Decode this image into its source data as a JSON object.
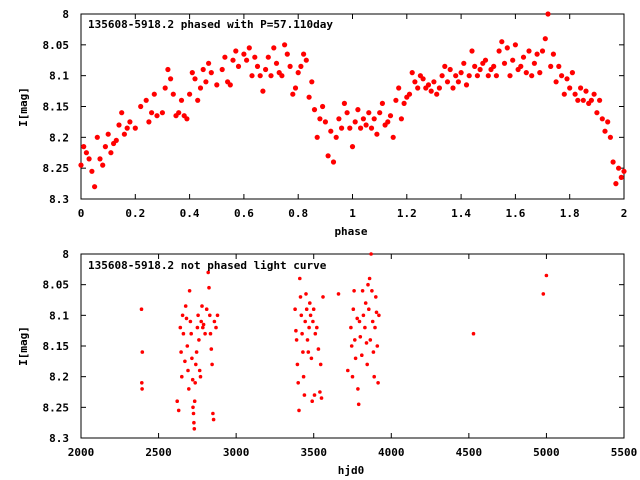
{
  "accent_color": "#ff0000",
  "chart_data": [
    {
      "type": "scatter",
      "title": "135608-5918.2 phased with P=57.110day",
      "xlabel": "phase",
      "ylabel": "I[mag]",
      "xlim": [
        0,
        2
      ],
      "ylim": [
        8.3,
        8.0
      ],
      "y_inverted": true,
      "x_ticks": [
        "0",
        "0.2",
        "0.4",
        "0.6",
        "0.8",
        "1",
        "1.2",
        "1.4",
        "1.6",
        "1.8",
        "2"
      ],
      "y_ticks": [
        "8",
        "8.05",
        "8.1",
        "8.15",
        "8.2",
        "8.25",
        "8.3"
      ],
      "grid": false,
      "legend": "top-left",
      "point_color": "#ff0000",
      "points": [
        [
          0.0,
          8.245
        ],
        [
          0.01,
          8.215
        ],
        [
          0.02,
          8.225
        ],
        [
          0.03,
          8.235
        ],
        [
          0.04,
          8.255
        ],
        [
          0.05,
          8.28
        ],
        [
          0.06,
          8.2
        ],
        [
          0.07,
          8.235
        ],
        [
          0.08,
          8.245
        ],
        [
          0.09,
          8.215
        ],
        [
          0.1,
          8.195
        ],
        [
          0.11,
          8.225
        ],
        [
          0.12,
          8.21
        ],
        [
          0.13,
          8.205
        ],
        [
          0.14,
          8.18
        ],
        [
          0.15,
          8.16
        ],
        [
          0.16,
          8.195
        ],
        [
          0.17,
          8.185
        ],
        [
          0.18,
          8.175
        ],
        [
          0.2,
          8.185
        ],
        [
          0.22,
          8.15
        ],
        [
          0.24,
          8.14
        ],
        [
          0.25,
          8.175
        ],
        [
          0.26,
          8.16
        ],
        [
          0.27,
          8.13
        ],
        [
          0.28,
          8.165
        ],
        [
          0.3,
          8.16
        ],
        [
          0.31,
          8.12
        ],
        [
          0.32,
          8.09
        ],
        [
          0.33,
          8.105
        ],
        [
          0.34,
          8.13
        ],
        [
          0.35,
          8.165
        ],
        [
          0.36,
          8.16
        ],
        [
          0.37,
          8.14
        ],
        [
          0.38,
          8.165
        ],
        [
          0.39,
          8.17
        ],
        [
          0.4,
          8.13
        ],
        [
          0.41,
          8.095
        ],
        [
          0.42,
          8.105
        ],
        [
          0.43,
          8.14
        ],
        [
          0.44,
          8.12
        ],
        [
          0.45,
          8.09
        ],
        [
          0.46,
          8.11
        ],
        [
          0.47,
          8.08
        ],
        [
          0.48,
          8.095
        ],
        [
          0.5,
          8.115
        ],
        [
          0.52,
          8.09
        ],
        [
          0.53,
          8.07
        ],
        [
          0.54,
          8.11
        ],
        [
          0.55,
          8.115
        ],
        [
          0.56,
          8.075
        ],
        [
          0.57,
          8.06
        ],
        [
          0.58,
          8.085
        ],
        [
          0.6,
          8.065
        ],
        [
          0.61,
          8.075
        ],
        [
          0.62,
          8.055
        ],
        [
          0.63,
          8.1
        ],
        [
          0.64,
          8.07
        ],
        [
          0.65,
          8.085
        ],
        [
          0.66,
          8.1
        ],
        [
          0.67,
          8.125
        ],
        [
          0.68,
          8.09
        ],
        [
          0.69,
          8.07
        ],
        [
          0.7,
          8.1
        ],
        [
          0.71,
          8.055
        ],
        [
          0.72,
          8.08
        ],
        [
          0.73,
          8.095
        ],
        [
          0.74,
          8.1
        ],
        [
          0.75,
          8.05
        ],
        [
          0.76,
          8.065
        ],
        [
          0.77,
          8.085
        ],
        [
          0.78,
          8.13
        ],
        [
          0.79,
          8.12
        ],
        [
          0.8,
          8.095
        ],
        [
          0.81,
          8.085
        ],
        [
          0.82,
          8.065
        ],
        [
          0.83,
          8.075
        ],
        [
          0.84,
          8.135
        ],
        [
          0.85,
          8.11
        ],
        [
          0.86,
          8.155
        ],
        [
          0.87,
          8.2
        ],
        [
          0.88,
          8.17
        ],
        [
          0.89,
          8.15
        ],
        [
          0.9,
          8.175
        ],
        [
          0.91,
          8.23
        ],
        [
          0.92,
          8.19
        ],
        [
          0.93,
          8.24
        ],
        [
          0.94,
          8.2
        ],
        [
          0.95,
          8.17
        ],
        [
          0.96,
          8.185
        ],
        [
          0.97,
          8.145
        ],
        [
          0.98,
          8.16
        ],
        [
          0.99,
          8.185
        ],
        [
          1.0,
          8.215
        ],
        [
          1.01,
          8.175
        ],
        [
          1.02,
          8.155
        ],
        [
          1.03,
          8.185
        ],
        [
          1.04,
          8.17
        ],
        [
          1.05,
          8.18
        ],
        [
          1.06,
          8.16
        ],
        [
          1.07,
          8.185
        ],
        [
          1.08,
          8.17
        ],
        [
          1.09,
          8.195
        ],
        [
          1.1,
          8.16
        ],
        [
          1.11,
          8.145
        ],
        [
          1.12,
          8.18
        ],
        [
          1.13,
          8.175
        ],
        [
          1.14,
          8.165
        ],
        [
          1.15,
          8.2
        ],
        [
          1.16,
          8.14
        ],
        [
          1.17,
          8.12
        ],
        [
          1.18,
          8.17
        ],
        [
          1.19,
          8.145
        ],
        [
          1.2,
          8.135
        ],
        [
          1.21,
          8.13
        ],
        [
          1.22,
          8.095
        ],
        [
          1.23,
          8.11
        ],
        [
          1.24,
          8.12
        ],
        [
          1.25,
          8.1
        ],
        [
          1.26,
          8.105
        ],
        [
          1.27,
          8.12
        ],
        [
          1.28,
          8.115
        ],
        [
          1.29,
          8.125
        ],
        [
          1.3,
          8.11
        ],
        [
          1.31,
          8.13
        ],
        [
          1.32,
          8.12
        ],
        [
          1.33,
          8.1
        ],
        [
          1.34,
          8.085
        ],
        [
          1.35,
          8.11
        ],
        [
          1.36,
          8.09
        ],
        [
          1.37,
          8.12
        ],
        [
          1.38,
          8.1
        ],
        [
          1.39,
          8.11
        ],
        [
          1.4,
          8.095
        ],
        [
          1.41,
          8.08
        ],
        [
          1.42,
          8.115
        ],
        [
          1.43,
          8.1
        ],
        [
          1.44,
          8.06
        ],
        [
          1.45,
          8.085
        ],
        [
          1.46,
          8.1
        ],
        [
          1.47,
          8.09
        ],
        [
          1.48,
          8.08
        ],
        [
          1.49,
          8.075
        ],
        [
          1.5,
          8.1
        ],
        [
          1.51,
          8.09
        ],
        [
          1.52,
          8.085
        ],
        [
          1.53,
          8.1
        ],
        [
          1.54,
          8.06
        ],
        [
          1.55,
          8.045
        ],
        [
          1.56,
          8.08
        ],
        [
          1.57,
          8.055
        ],
        [
          1.58,
          8.1
        ],
        [
          1.59,
          8.075
        ],
        [
          1.6,
          8.05
        ],
        [
          1.61,
          8.09
        ],
        [
          1.62,
          8.085
        ],
        [
          1.63,
          8.07
        ],
        [
          1.64,
          8.095
        ],
        [
          1.65,
          8.06
        ],
        [
          1.66,
          8.1
        ],
        [
          1.67,
          8.08
        ],
        [
          1.68,
          8.065
        ],
        [
          1.69,
          8.095
        ],
        [
          1.7,
          8.06
        ],
        [
          1.71,
          8.04
        ],
        [
          1.72,
          8.0
        ],
        [
          1.73,
          8.085
        ],
        [
          1.74,
          8.065
        ],
        [
          1.75,
          8.11
        ],
        [
          1.76,
          8.085
        ],
        [
          1.77,
          8.1
        ],
        [
          1.78,
          8.13
        ],
        [
          1.79,
          8.105
        ],
        [
          1.8,
          8.12
        ],
        [
          1.81,
          8.095
        ],
        [
          1.82,
          8.13
        ],
        [
          1.83,
          8.14
        ],
        [
          1.84,
          8.12
        ],
        [
          1.85,
          8.14
        ],
        [
          1.86,
          8.125
        ],
        [
          1.87,
          8.145
        ],
        [
          1.88,
          8.14
        ],
        [
          1.89,
          8.13
        ],
        [
          1.9,
          8.16
        ],
        [
          1.91,
          8.14
        ],
        [
          1.92,
          8.17
        ],
        [
          1.93,
          8.19
        ],
        [
          1.94,
          8.175
        ],
        [
          1.95,
          8.2
        ],
        [
          1.96,
          8.24
        ],
        [
          1.97,
          8.275
        ],
        [
          1.98,
          8.25
        ],
        [
          1.99,
          8.265
        ],
        [
          2.0,
          8.255
        ]
      ]
    },
    {
      "type": "scatter",
      "title": "135608-5918.2 not phased light curve",
      "xlabel": "hjd0",
      "ylabel": "I[mag]",
      "xlim": [
        2000,
        5500
      ],
      "ylim": [
        8.3,
        8.0
      ],
      "y_inverted": true,
      "x_ticks": [
        "2000",
        "2500",
        "3000",
        "3500",
        "4000",
        "4500",
        "5000",
        "5500"
      ],
      "y_ticks": [
        "8",
        "8.05",
        "8.1",
        "8.15",
        "8.2",
        "8.25",
        "8.3"
      ],
      "grid": false,
      "legend": "top-left",
      "point_color": "#ff0000",
      "points": [
        [
          2390,
          8.09
        ],
        [
          2395,
          8.16
        ],
        [
          2392,
          8.21
        ],
        [
          2394,
          8.22
        ],
        [
          2620,
          8.24
        ],
        [
          2630,
          8.255
        ],
        [
          2640,
          8.12
        ],
        [
          2645,
          8.16
        ],
        [
          2650,
          8.2
        ],
        [
          2655,
          8.1
        ],
        [
          2660,
          8.13
        ],
        [
          2670,
          8.175
        ],
        [
          2675,
          8.085
        ],
        [
          2680,
          8.105
        ],
        [
          2685,
          8.15
        ],
        [
          2690,
          8.19
        ],
        [
          2695,
          8.22
        ],
        [
          2700,
          8.06
        ],
        [
          2705,
          8.11
        ],
        [
          2710,
          8.13
        ],
        [
          2715,
          8.17
        ],
        [
          2720,
          8.205
        ],
        [
          2722,
          8.25
        ],
        [
          2725,
          8.26
        ],
        [
          2728,
          8.275
        ],
        [
          2730,
          8.285
        ],
        [
          2733,
          8.24
        ],
        [
          2736,
          8.21
        ],
        [
          2740,
          8.18
        ],
        [
          2745,
          8.16
        ],
        [
          2750,
          8.12
        ],
        [
          2755,
          8.1
        ],
        [
          2760,
          8.14
        ],
        [
          2765,
          8.19
        ],
        [
          2770,
          8.2
        ],
        [
          2775,
          8.11
        ],
        [
          2780,
          8.085
        ],
        [
          2785,
          8.12
        ],
        [
          2790,
          8.115
        ],
        [
          2800,
          8.13
        ],
        [
          2810,
          8.09
        ],
        [
          2820,
          8.03
        ],
        [
          2825,
          8.055
        ],
        [
          2830,
          8.1
        ],
        [
          2835,
          8.13
        ],
        [
          2840,
          8.155
        ],
        [
          2845,
          8.18
        ],
        [
          2850,
          8.26
        ],
        [
          2855,
          8.27
        ],
        [
          2860,
          8.11
        ],
        [
          2870,
          8.12
        ],
        [
          2880,
          8.1
        ],
        [
          3380,
          8.09
        ],
        [
          3385,
          8.125
        ],
        [
          3390,
          8.14
        ],
        [
          3395,
          8.18
        ],
        [
          3400,
          8.21
        ],
        [
          3405,
          8.255
        ],
        [
          3410,
          8.04
        ],
        [
          3415,
          8.07
        ],
        [
          3420,
          8.1
        ],
        [
          3425,
          8.13
        ],
        [
          3430,
          8.16
        ],
        [
          3435,
          8.2
        ],
        [
          3440,
          8.23
        ],
        [
          3445,
          8.11
        ],
        [
          3450,
          8.065
        ],
        [
          3455,
          8.09
        ],
        [
          3460,
          8.14
        ],
        [
          3465,
          8.16
        ],
        [
          3470,
          8.12
        ],
        [
          3475,
          8.08
        ],
        [
          3480,
          8.1
        ],
        [
          3485,
          8.17
        ],
        [
          3490,
          8.24
        ],
        [
          3495,
          8.11
        ],
        [
          3500,
          8.09
        ],
        [
          3505,
          8.23
        ],
        [
          3510,
          8.13
        ],
        [
          3520,
          8.12
        ],
        [
          3530,
          8.155
        ],
        [
          3540,
          8.225
        ],
        [
          3545,
          8.18
        ],
        [
          3550,
          8.235
        ],
        [
          3560,
          8.07
        ],
        [
          3660,
          8.065
        ],
        [
          3720,
          8.19
        ],
        [
          3740,
          8.12
        ],
        [
          3745,
          8.15
        ],
        [
          3750,
          8.2
        ],
        [
          3755,
          8.09
        ],
        [
          3760,
          8.06
        ],
        [
          3765,
          8.14
        ],
        [
          3770,
          8.17
        ],
        [
          3780,
          8.105
        ],
        [
          3785,
          8.22
        ],
        [
          3790,
          8.245
        ],
        [
          3795,
          8.11
        ],
        [
          3800,
          8.135
        ],
        [
          3810,
          8.165
        ],
        [
          3815,
          8.06
        ],
        [
          3820,
          8.1
        ],
        [
          3830,
          8.12
        ],
        [
          3835,
          8.08
        ],
        [
          3840,
          8.145
        ],
        [
          3845,
          8.18
        ],
        [
          3850,
          8.05
        ],
        [
          3855,
          8.09
        ],
        [
          3860,
          8.04
        ],
        [
          3865,
          8.14
        ],
        [
          3870,
          8.0
        ],
        [
          3875,
          8.06
        ],
        [
          3880,
          8.11
        ],
        [
          3885,
          8.16
        ],
        [
          3890,
          8.2
        ],
        [
          3895,
          8.12
        ],
        [
          3900,
          8.07
        ],
        [
          3905,
          8.095
        ],
        [
          3910,
          8.15
        ],
        [
          3915,
          8.21
        ],
        [
          3920,
          8.1
        ],
        [
          4530,
          8.13
        ],
        [
          4980,
          8.065
        ],
        [
          5000,
          8.035
        ]
      ]
    }
  ]
}
